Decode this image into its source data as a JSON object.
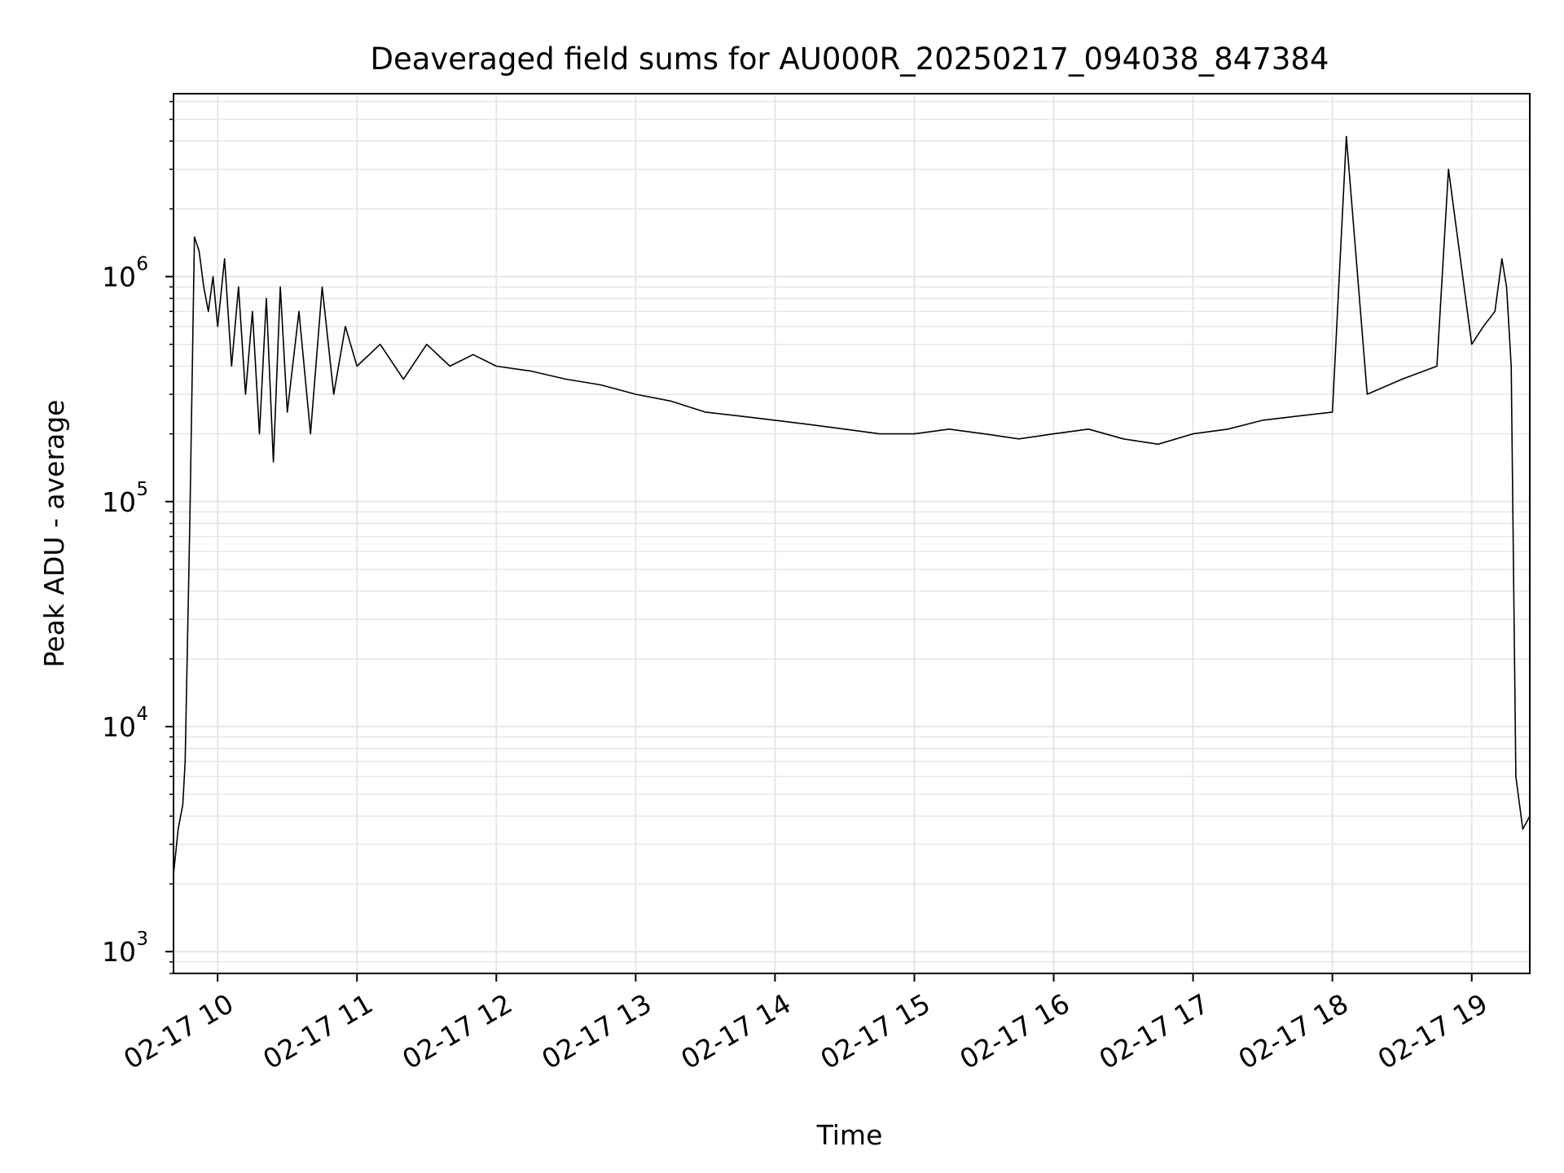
{
  "chart_data": {
    "type": "line",
    "title": "Deaveraged field sums for AU000R_20250217_094038_847384",
    "xlabel": "Time",
    "ylabel": "Peak ADU - average",
    "yscale": "log",
    "ylim": [
      800,
      6500000
    ],
    "xlim": [
      "02-17 09:41",
      "02-17 19:25"
    ],
    "grid": true,
    "line_color": "#000000",
    "grid_color": "#e6e6e6",
    "x_ticks": [
      {
        "value": "02-17 10:00",
        "label": "02-17 10"
      },
      {
        "value": "02-17 11:00",
        "label": "02-17 11"
      },
      {
        "value": "02-17 12:00",
        "label": "02-17 12"
      },
      {
        "value": "02-17 13:00",
        "label": "02-17 13"
      },
      {
        "value": "02-17 14:00",
        "label": "02-17 14"
      },
      {
        "value": "02-17 15:00",
        "label": "02-17 15"
      },
      {
        "value": "02-17 16:00",
        "label": "02-17 16"
      },
      {
        "value": "02-17 17:00",
        "label": "02-17 17"
      },
      {
        "value": "02-17 18:00",
        "label": "02-17 18"
      },
      {
        "value": "02-17 19:00",
        "label": "02-17 19"
      }
    ],
    "y_ticks": [
      {
        "value": 1000,
        "base": "10",
        "exp": "3"
      },
      {
        "value": 10000,
        "base": "10",
        "exp": "4"
      },
      {
        "value": 100000,
        "base": "10",
        "exp": "5"
      },
      {
        "value": 1000000,
        "base": "10",
        "exp": "6"
      }
    ],
    "series": [
      {
        "x": [
          "02-17 09:41",
          "02-17 09:43",
          "02-17 09:45",
          "02-17 09:46",
          "02-17 09:48",
          "02-17 09:50",
          "02-17 09:52",
          "02-17 09:54",
          "02-17 09:56",
          "02-17 09:58",
          "02-17 10:00",
          "02-17 10:03",
          "02-17 10:06",
          "02-17 10:09",
          "02-17 10:12",
          "02-17 10:15",
          "02-17 10:18",
          "02-17 10:21",
          "02-17 10:24",
          "02-17 10:27",
          "02-17 10:30",
          "02-17 10:35",
          "02-17 10:40",
          "02-17 10:45",
          "02-17 10:50",
          "02-17 10:55",
          "02-17 11:00",
          "02-17 11:10",
          "02-17 11:20",
          "02-17 11:30",
          "02-17 11:40",
          "02-17 11:50",
          "02-17 12:00",
          "02-17 12:15",
          "02-17 12:30",
          "02-17 12:45",
          "02-17 13:00",
          "02-17 13:15",
          "02-17 13:30",
          "02-17 13:45",
          "02-17 14:00",
          "02-17 14:15",
          "02-17 14:30",
          "02-17 14:45",
          "02-17 15:00",
          "02-17 15:15",
          "02-17 15:30",
          "02-17 15:45",
          "02-17 16:00",
          "02-17 16:15",
          "02-17 16:30",
          "02-17 16:45",
          "02-17 17:00",
          "02-17 17:15",
          "02-17 17:30",
          "02-17 17:45",
          "02-17 18:00",
          "02-17 18:06",
          "02-17 18:15",
          "02-17 18:30",
          "02-17 18:45",
          "02-17 18:50",
          "02-17 19:00",
          "02-17 19:05",
          "02-17 19:10",
          "02-17 19:13",
          "02-17 19:15",
          "02-17 19:17",
          "02-17 19:19",
          "02-17 19:22",
          "02-17 19:25"
        ],
        "y": [
          2200,
          3500,
          4500,
          7000,
          80000,
          1500000,
          1300000,
          900000,
          700000,
          1000000,
          600000,
          1200000,
          400000,
          900000,
          300000,
          700000,
          200000,
          800000,
          150000,
          900000,
          250000,
          700000,
          200000,
          900000,
          300000,
          600000,
          400000,
          500000,
          350000,
          500000,
          400000,
          450000,
          400000,
          380000,
          350000,
          330000,
          300000,
          280000,
          250000,
          240000,
          230000,
          220000,
          210000,
          200000,
          200000,
          210000,
          200000,
          190000,
          200000,
          210000,
          190000,
          180000,
          200000,
          210000,
          230000,
          240000,
          250000,
          4200000,
          300000,
          350000,
          400000,
          3000000,
          500000,
          600000,
          700000,
          1200000,
          900000,
          400000,
          6000,
          3500,
          4000
        ]
      }
    ]
  }
}
